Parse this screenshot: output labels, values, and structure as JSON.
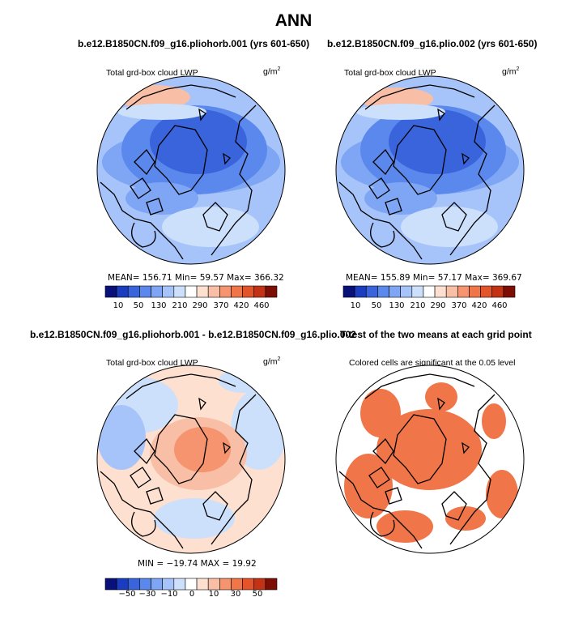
{
  "main_title": "ANN",
  "panels": [
    {
      "title": "b.e12.B1850CN.f09_g16.pliohorb.001 (yrs 601-650)",
      "variable": "Total grd-box cloud LWP",
      "units": "g/m",
      "units_exp": "2",
      "stats": "MEAN= 156.71   Min=  59.57   Max= 366.32"
    },
    {
      "title": "b.e12.B1850CN.f09_g16.plio.002 (yrs 601-650)",
      "variable": "Total grd-box cloud LWP",
      "units": "g/m",
      "units_exp": "2",
      "stats": "MEAN= 155.89   Min=  57.17   Max= 369.67"
    },
    {
      "title": "b.e12.B1850CN.f09_g16.pliohorb.001 - b.e12.B1850CN.f09_g16.plio.002",
      "variable": "Total grd-box cloud LWP",
      "units": "g/m",
      "units_exp": "2",
      "stats": "MIN = −19.74  MAX =  19.92"
    },
    {
      "title": "T-test of the two means at each grid point",
      "note": "Colored cells are significant at the 0.05 level"
    }
  ],
  "colorbar_abs": {
    "colors": [
      "#08107a",
      "#1a3cbe",
      "#3a64dc",
      "#5a88ec",
      "#7ea6f4",
      "#a6c4fa",
      "#cce0fc",
      "#ffffff",
      "#fde0d0",
      "#f9bfa6",
      "#f5946e",
      "#f07548",
      "#e4542a",
      "#c43216",
      "#7c0e06"
    ],
    "labels": [
      "10",
      "50",
      "130",
      "210",
      "290",
      "370",
      "420",
      "460"
    ]
  },
  "colorbar_diff": {
    "colors": [
      "#08107a",
      "#1a3cbe",
      "#3a64dc",
      "#5a88ec",
      "#7ea6f4",
      "#a6c4fa",
      "#cce0fc",
      "#ffffff",
      "#fde0d0",
      "#f9bfa6",
      "#f5946e",
      "#f07548",
      "#e4542a",
      "#c43216",
      "#7c0e06"
    ],
    "labels": [
      "−50",
      "−30",
      "−10",
      "0",
      "10",
      "30",
      "50"
    ]
  },
  "significant_color": "#f07548"
}
